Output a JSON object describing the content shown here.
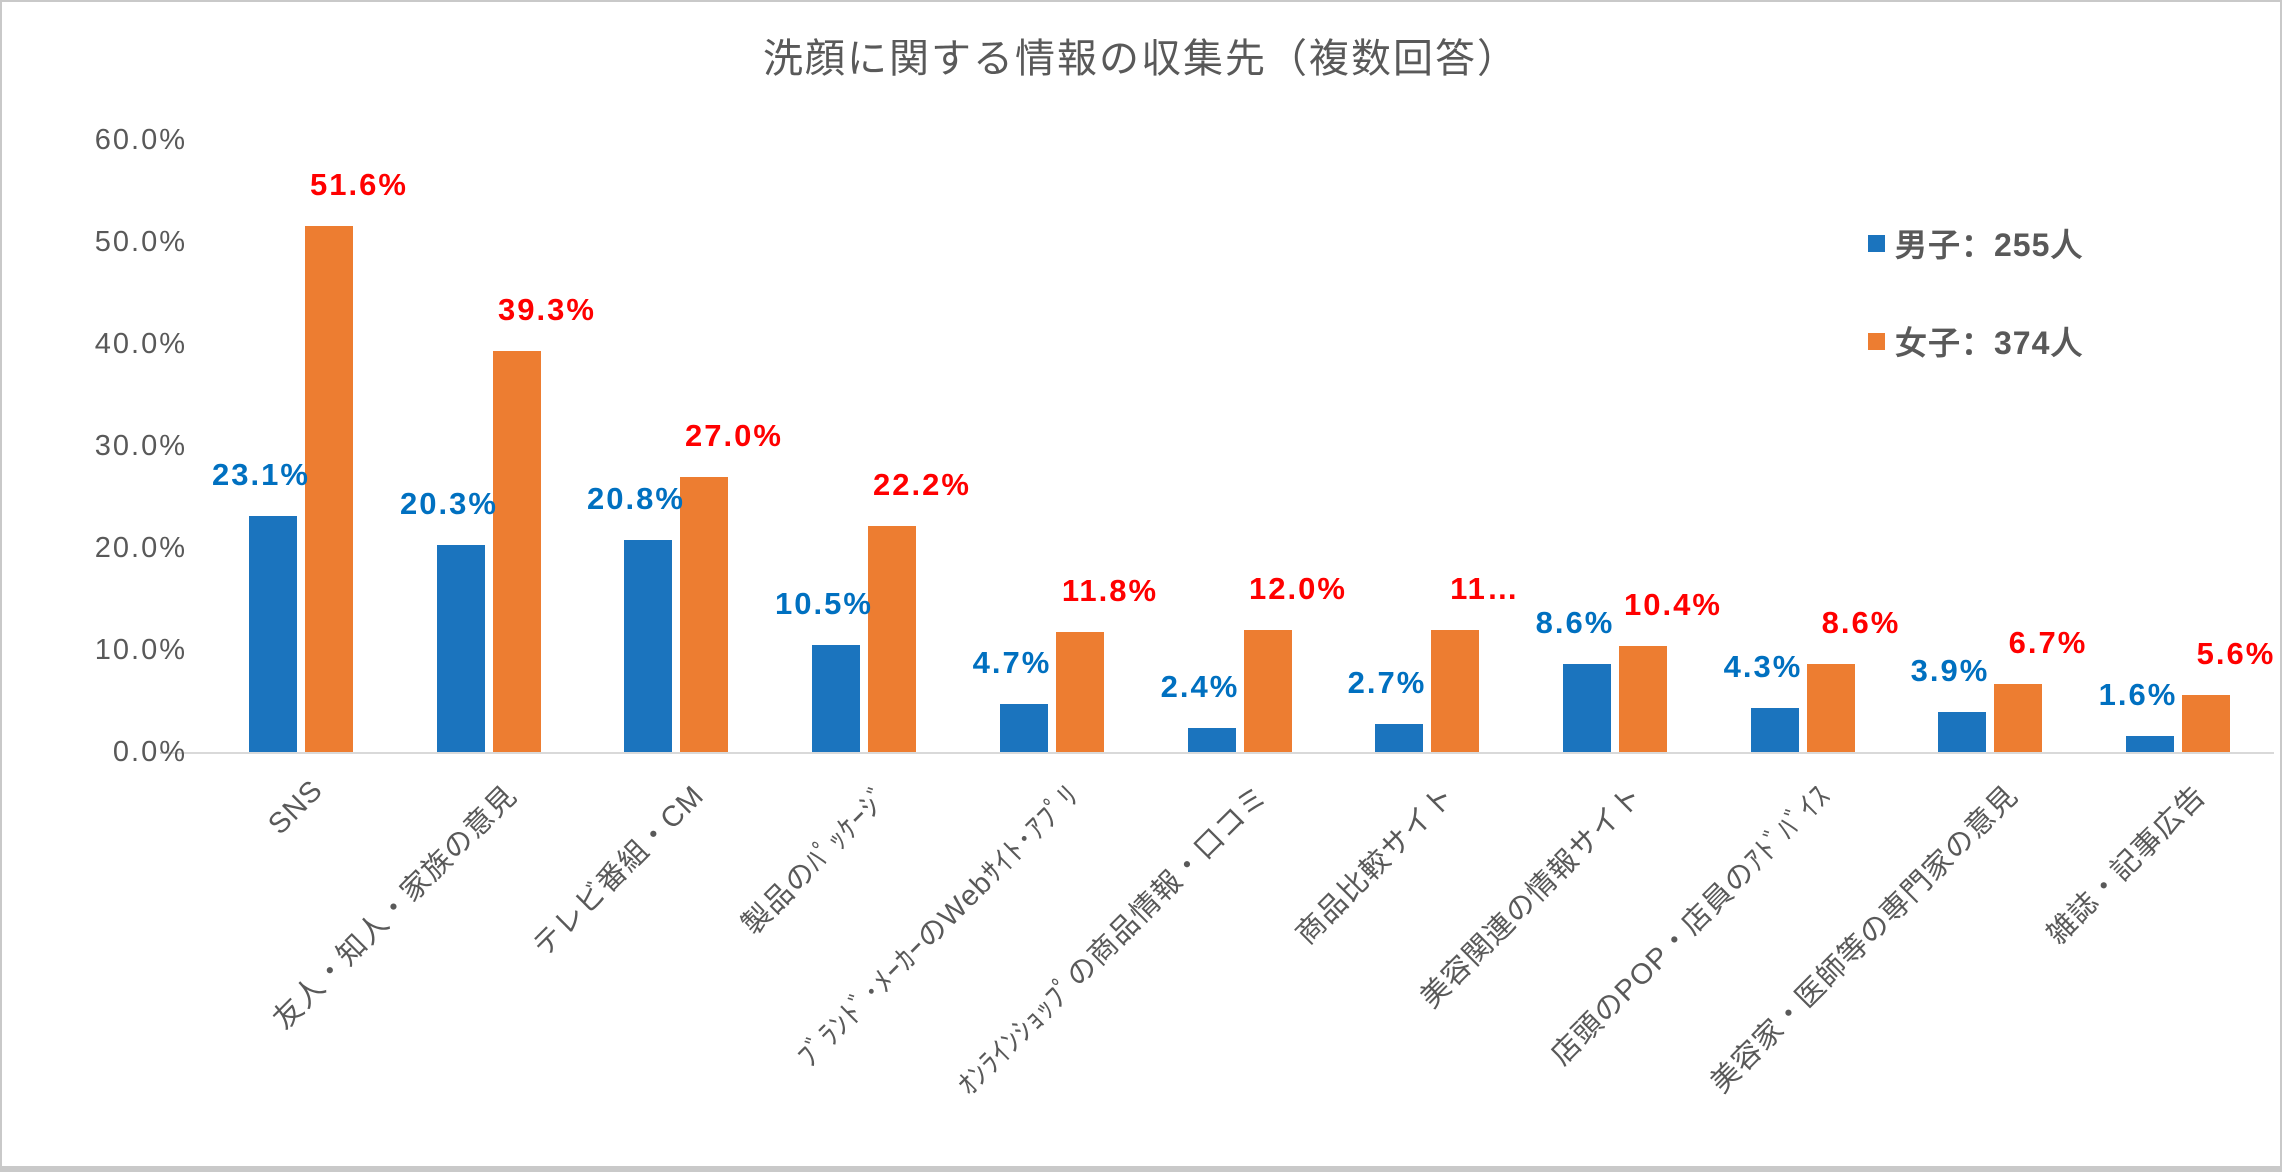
{
  "title": "洗顔に関する情報の収集先（複数回答）",
  "colors": {
    "male_bar": "#1b74be",
    "female_bar": "#ed7d31",
    "male_label": "#0070c0",
    "female_label": "#ff0000",
    "axis_text": "#595959",
    "axis_line": "#d9d9d9"
  },
  "chart_data": {
    "type": "bar",
    "title": "洗顔に関する情報の収集先（複数回答）",
    "categories": [
      "SNS",
      "友人・知人・家族の意見",
      "テレビ番組・CM",
      "製品のﾊﾟｯｹｰｼﾞ",
      "ﾌﾞﾗﾝﾄﾞ･ﾒｰｶｰのWebｻｲﾄ･ｱﾌﾟﾘ",
      "ｵﾝﾗｲﾝｼｮｯﾌﾟの商品情報・口コミ",
      "商品比較サイト",
      "美容関連の情報サイト",
      "店頭のPOP・店員のｱﾄﾞﾊﾞｲｽ",
      "美容家・医師等の専門家の意見",
      "雑誌・記事広告"
    ],
    "series": [
      {
        "name": "男子：255人",
        "color": "#1b74be",
        "label_color": "#0070c0",
        "values": [
          23.1,
          20.3,
          20.8,
          10.5,
          4.7,
          2.4,
          2.7,
          8.6,
          4.3,
          3.9,
          1.6
        ],
        "labels": [
          "23.1%",
          "20.3%",
          "20.8%",
          "10.5%",
          "4.7%",
          "2.4%",
          "2.7%",
          "8.6%",
          "4.3%",
          "3.9%",
          "1.6%"
        ]
      },
      {
        "name": "女子：374人",
        "color": "#ed7d31",
        "label_color": "#ff0000",
        "values": [
          51.6,
          39.3,
          27.0,
          22.2,
          11.8,
          12.0,
          12.0,
          10.4,
          8.6,
          6.7,
          5.6
        ],
        "labels": [
          "51.6%",
          "39.3%",
          "27.0%",
          "22.2%",
          "11.8%",
          "12.0%",
          "11…",
          "10.4%",
          "8.6%",
          "6.7%",
          "5.6%"
        ]
      }
    ],
    "ylim": [
      0,
      60
    ],
    "y_ticks": [
      "0.0%",
      "10.0%",
      "20.0%",
      "30.0%",
      "40.0%",
      "50.0%",
      "60.0%"
    ],
    "grid": false,
    "legend_position": "top-right",
    "data_labels": true
  }
}
